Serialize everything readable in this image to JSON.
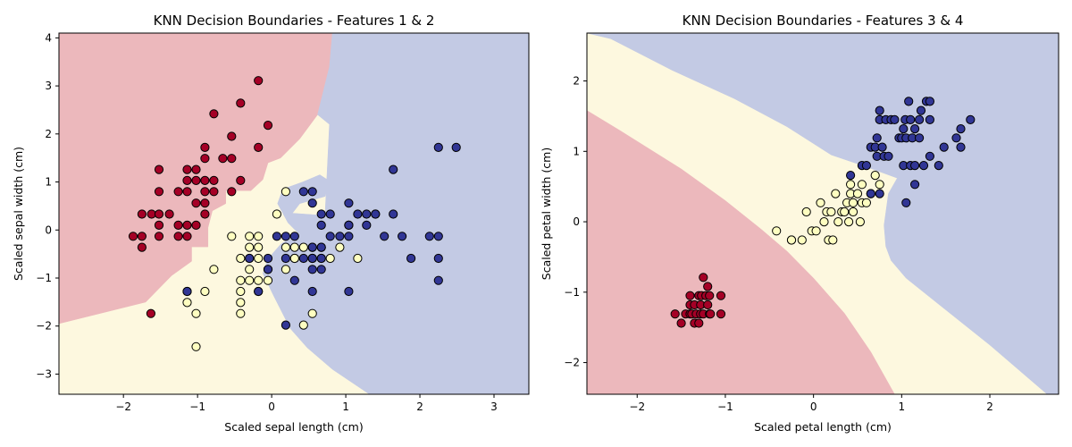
{
  "colors": {
    "region_red": "#ecb8bc",
    "region_yellow": "#fdf8df",
    "region_blue": "#c3cae4",
    "point_red": "#a50026",
    "point_yellow": "#fefec0",
    "point_blue": "#313695"
  },
  "chart_data": [
    {
      "type": "scatter",
      "title": "KNN Decision Boundaries - Features 1 & 2",
      "xlabel": "Scaled sepal length (cm)",
      "ylabel": "Scaled sepal width (cm)",
      "xlim": [
        -2.87,
        3.47
      ],
      "ylim": [
        -3.42,
        4.1
      ],
      "xticks": [
        -2,
        -1,
        0,
        1,
        2,
        3
      ],
      "yticks": [
        -3,
        -2,
        -1,
        0,
        1,
        2,
        3,
        4
      ],
      "grid": false,
      "legend": "none",
      "regions": [
        {
          "class": "red",
          "polygon": [
            [
              -2.87,
              4.1
            ],
            [
              0.82,
              4.1
            ],
            [
              0.78,
              3.4
            ],
            [
              0.62,
              2.4
            ],
            [
              0.38,
              1.9
            ],
            [
              0.12,
              1.5
            ],
            [
              -0.05,
              1.4
            ],
            [
              -0.12,
              1.05
            ],
            [
              -0.28,
              0.82
            ],
            [
              -0.62,
              0.82
            ],
            [
              -0.62,
              0.55
            ],
            [
              -0.8,
              0.4
            ],
            [
              -0.86,
              0.05
            ],
            [
              -0.86,
              -0.35
            ],
            [
              -1.08,
              -0.35
            ],
            [
              -1.08,
              -0.65
            ],
            [
              -1.35,
              -0.95
            ],
            [
              -1.7,
              -1.5
            ],
            [
              -2.87,
              -1.95
            ]
          ]
        },
        {
          "class": "blue",
          "polygon": [
            [
              0.82,
              4.1
            ],
            [
              3.47,
              4.1
            ],
            [
              3.47,
              -3.42
            ],
            [
              1.32,
              -3.42
            ],
            [
              0.82,
              -2.9
            ],
            [
              0.48,
              -2.45
            ],
            [
              0.25,
              -2.05
            ],
            [
              0.02,
              -1.35
            ],
            [
              -0.12,
              -0.9
            ],
            [
              -0.05,
              -0.6
            ],
            [
              0.12,
              -0.3
            ],
            [
              0.35,
              -0.05
            ],
            [
              0.22,
              0.15
            ],
            [
              0.08,
              0.55
            ],
            [
              0.15,
              0.85
            ],
            [
              0.42,
              1.0
            ],
            [
              0.65,
              1.15
            ],
            [
              0.78,
              1.02
            ],
            [
              0.72,
              0.7
            ],
            [
              0.38,
              0.55
            ],
            [
              0.28,
              0.35
            ],
            [
              0.72,
              0.3
            ],
            [
              0.78,
              2.2
            ],
            [
              0.62,
              2.4
            ],
            [
              0.78,
              3.4
            ]
          ]
        }
      ],
      "series": [
        {
          "class": "red",
          "x": [
            -1.87,
            -1.75,
            -1.75,
            -1.75,
            -1.62,
            -1.52,
            -1.52,
            -1.52,
            -1.52,
            -1.52,
            -1.38,
            -1.26,
            -1.26,
            -1.26,
            -1.14,
            -1.14,
            -1.14,
            -1.14,
            -1.14,
            -1.02,
            -1.02,
            -1.02,
            -1.02,
            -0.9,
            -0.9,
            -0.9,
            -0.9,
            -0.9,
            -0.9,
            -0.78,
            -0.78,
            -0.78,
            -0.66,
            -0.54,
            -0.54,
            -0.54,
            -0.42,
            -0.42,
            -0.18,
            -0.18,
            -0.05,
            -1.63
          ],
          "y": [
            -0.13,
            0.33,
            -0.13,
            -0.36,
            0.33,
            1.26,
            0.8,
            0.33,
            0.1,
            -0.13,
            0.33,
            0.8,
            0.1,
            -0.13,
            1.26,
            1.03,
            0.8,
            0.1,
            -0.13,
            1.26,
            1.03,
            0.56,
            0.1,
            1.72,
            1.49,
            1.03,
            0.8,
            0.56,
            0.33,
            2.42,
            1.03,
            0.8,
            1.49,
            1.95,
            1.49,
            0.8,
            2.64,
            1.03,
            3.11,
            1.72,
            2.18,
            -1.74
          ]
        },
        {
          "class": "yellow",
          "x": [
            -1.14,
            -1.14,
            -1.02,
            -1.02,
            -0.9,
            -0.78,
            -0.54,
            -0.42,
            -0.42,
            -0.42,
            -0.42,
            -0.42,
            -0.3,
            -0.3,
            -0.3,
            -0.3,
            -0.3,
            -0.18,
            -0.18,
            -0.18,
            -0.18,
            -0.18,
            -0.05,
            -0.05,
            0.07,
            0.19,
            0.19,
            0.19,
            0.31,
            0.31,
            0.31,
            0.43,
            0.43,
            0.55,
            0.55,
            0.55,
            0.67,
            0.67,
            0.79,
            0.92,
            1.16,
            1.4
          ],
          "y": [
            -1.28,
            -1.51,
            -1.74,
            -2.43,
            -1.28,
            -0.82,
            -0.13,
            -1.05,
            -1.28,
            -1.51,
            -1.74,
            -0.59,
            -0.13,
            -0.36,
            -0.59,
            -0.82,
            -1.05,
            -0.13,
            -0.36,
            -0.59,
            -1.05,
            -1.28,
            -0.82,
            -1.05,
            0.33,
            0.8,
            -0.36,
            -0.82,
            -0.36,
            -0.59,
            -0.59,
            -0.36,
            -1.98,
            -1.74,
            -0.36,
            -0.59,
            -0.36,
            -0.59,
            -0.59,
            -0.36,
            -0.59,
            0.33
          ]
        },
        {
          "class": "blue",
          "x": [
            -1.14,
            -0.3,
            -0.18,
            -0.05,
            -0.05,
            0.07,
            0.19,
            0.19,
            0.19,
            0.31,
            0.31,
            0.43,
            0.43,
            0.55,
            0.55,
            0.55,
            0.55,
            0.55,
            0.55,
            0.55,
            0.67,
            0.67,
            0.67,
            0.67,
            0.67,
            0.79,
            0.79,
            0.92,
            1.04,
            1.04,
            1.04,
            1.04,
            1.04,
            1.16,
            1.28,
            1.28,
            1.4,
            1.52,
            1.64,
            1.64,
            1.76,
            1.88,
            2.13,
            2.25,
            2.25,
            2.25,
            2.25,
            2.49
          ],
          "y": [
            -1.28,
            -0.59,
            -1.28,
            -0.59,
            -0.82,
            -0.13,
            -0.13,
            -1.98,
            -0.59,
            -0.13,
            -1.05,
            0.8,
            -0.59,
            0.8,
            0.56,
            -0.36,
            -0.59,
            -0.82,
            -1.28,
            -0.59,
            0.33,
            0.1,
            -0.36,
            -0.59,
            -0.82,
            0.33,
            -0.13,
            -0.13,
            0.56,
            0.1,
            0.1,
            -0.13,
            -1.28,
            0.33,
            0.33,
            0.1,
            0.33,
            -0.13,
            1.26,
            0.33,
            -0.13,
            -0.59,
            -0.13,
            1.72,
            -0.13,
            -0.59,
            -1.05,
            1.72
          ]
        }
      ]
    },
    {
      "type": "scatter",
      "title": "KNN Decision Boundaries - Features 3 & 4",
      "xlabel": "Scaled petal length (cm)",
      "ylabel": "Scaled petal width (cm)",
      "xlim": [
        -2.57,
        2.78
      ],
      "ylim": [
        -2.45,
        2.68
      ],
      "xticks": [
        -2,
        -1,
        0,
        1,
        2
      ],
      "yticks": [
        -2,
        -1,
        0,
        1,
        2
      ],
      "grid": false,
      "legend": "none",
      "regions": [
        {
          "class": "red",
          "polygon": [
            [
              -2.57,
              1.58
            ],
            [
              -2.2,
              1.3
            ],
            [
              -1.5,
              0.75
            ],
            [
              -1.0,
              0.3
            ],
            [
              -0.6,
              -0.1
            ],
            [
              -0.3,
              -0.42
            ],
            [
              0.0,
              -0.8
            ],
            [
              0.35,
              -1.3
            ],
            [
              0.65,
              -1.85
            ],
            [
              0.92,
              -2.45
            ],
            [
              -2.57,
              -2.45
            ]
          ]
        },
        {
          "class": "blue",
          "polygon": [
            [
              -2.57,
              2.68
            ],
            [
              2.78,
              2.68
            ],
            [
              2.78,
              -2.45
            ],
            [
              2.65,
              -2.45
            ],
            [
              2.0,
              -1.75
            ],
            [
              1.45,
              -1.2
            ],
            [
              1.05,
              -0.8
            ],
            [
              0.88,
              -0.55
            ],
            [
              0.82,
              -0.35
            ],
            [
              0.8,
              -0.05
            ],
            [
              0.85,
              0.4
            ],
            [
              0.95,
              0.62
            ],
            [
              0.6,
              0.78
            ],
            [
              0.2,
              0.95
            ],
            [
              -0.3,
              1.35
            ],
            [
              -0.9,
              1.75
            ],
            [
              -1.6,
              2.15
            ],
            [
              -2.3,
              2.6
            ]
          ]
        }
      ],
      "series": [
        {
          "class": "red",
          "x": [
            -1.57,
            -1.5,
            -1.45,
            -1.4,
            -1.4,
            -1.4,
            -1.38,
            -1.35,
            -1.35,
            -1.33,
            -1.3,
            -1.3,
            -1.28,
            -1.28,
            -1.27,
            -1.25,
            -1.25,
            -1.22,
            -1.2,
            -1.2,
            -1.18,
            -1.18,
            -1.17,
            -1.05,
            -1.05
          ],
          "y": [
            -1.31,
            -1.44,
            -1.31,
            -1.05,
            -1.18,
            -1.31,
            -1.31,
            -1.44,
            -1.18,
            -1.31,
            -1.05,
            -1.44,
            -1.18,
            -1.31,
            -1.05,
            -0.79,
            -1.31,
            -1.05,
            -0.92,
            -1.18,
            -1.31,
            -1.05,
            -1.31,
            -1.05,
            -1.31
          ]
        },
        {
          "class": "yellow",
          "x": [
            -0.42,
            -0.25,
            -0.25,
            -0.13,
            -0.08,
            -0.02,
            0.03,
            0.08,
            0.12,
            0.15,
            0.17,
            0.2,
            0.22,
            0.25,
            0.28,
            0.32,
            0.35,
            0.38,
            0.4,
            0.42,
            0.42,
            0.45,
            0.45,
            0.5,
            0.53,
            0.55,
            0.55,
            0.6,
            0.65,
            0.7,
            0.75
          ],
          "y": [
            -0.13,
            -0.26,
            -0.26,
            -0.26,
            0.14,
            -0.13,
            -0.13,
            0.27,
            0.0,
            0.14,
            -0.26,
            0.14,
            -0.26,
            0.4,
            0.0,
            0.14,
            0.14,
            0.27,
            0.0,
            0.4,
            0.53,
            0.14,
            0.27,
            0.4,
            0.0,
            0.27,
            0.53,
            0.27,
            0.4,
            0.66,
            0.53
          ]
        },
        {
          "class": "blue",
          "x": [
            0.42,
            0.55,
            0.6,
            0.65,
            0.65,
            0.7,
            0.72,
            0.72,
            0.75,
            0.75,
            0.75,
            0.78,
            0.8,
            0.82,
            0.85,
            0.88,
            0.92,
            0.97,
            1.0,
            1.02,
            1.02,
            1.04,
            1.05,
            1.05,
            1.08,
            1.1,
            1.1,
            1.12,
            1.15,
            1.15,
            1.15,
            1.2,
            1.2,
            1.22,
            1.25,
            1.28,
            1.32,
            1.32,
            1.32,
            1.42,
            1.48,
            1.62,
            1.67,
            1.67,
            1.78
          ],
          "y": [
            0.66,
            0.8,
            0.8,
            1.06,
            0.4,
            1.06,
            0.93,
            1.19,
            1.45,
            1.58,
            0.4,
            1.06,
            0.93,
            1.45,
            0.93,
            1.45,
            1.45,
            1.19,
            1.19,
            0.8,
            1.32,
            1.45,
            1.19,
            0.27,
            1.71,
            1.45,
            0.8,
            1.19,
            1.32,
            0.53,
            0.8,
            1.45,
            1.19,
            1.58,
            0.8,
            1.71,
            1.45,
            1.71,
            0.93,
            0.8,
            1.06,
            1.19,
            1.06,
            1.32,
            1.45
          ]
        }
      ]
    }
  ]
}
